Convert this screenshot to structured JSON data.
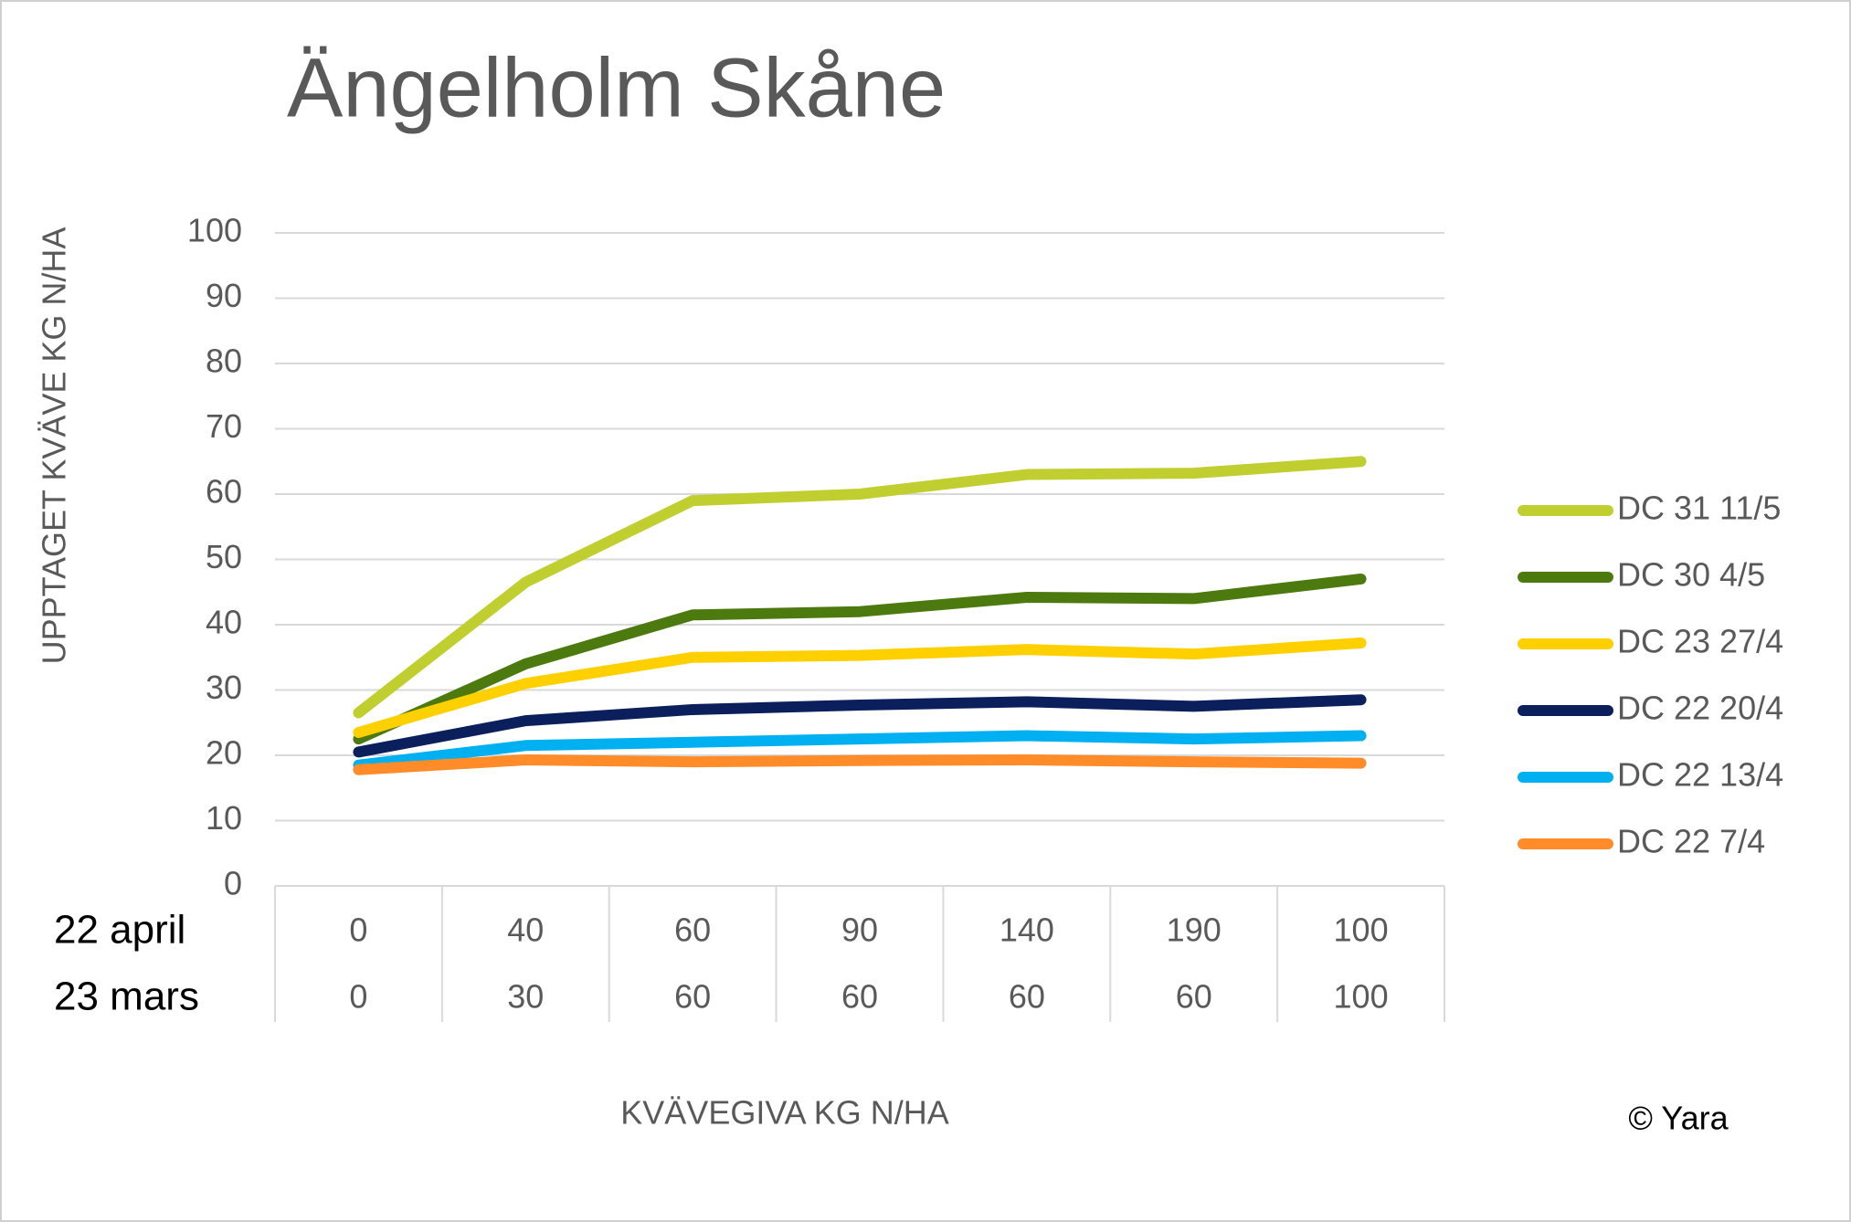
{
  "chart_data": {
    "type": "line",
    "title": "Ängelholm Skåne",
    "y_label": "UPPTAGET KVÄVE KG N/HA",
    "x_label": "KVÄVEGIVA KG N/HA",
    "note": "© Yara",
    "category_levels": [
      {
        "name": "22 april",
        "labels": [
          "0",
          "40",
          "60",
          "90",
          "140",
          "190",
          "100"
        ]
      },
      {
        "name": "23 mars",
        "labels": [
          "0",
          "30",
          "60",
          "60",
          "60",
          "60",
          "100"
        ]
      }
    ],
    "ylim": [
      0,
      100
    ],
    "yticks": [
      0,
      10,
      20,
      30,
      40,
      50,
      60,
      70,
      80,
      90,
      100
    ],
    "grid": true,
    "legend": "right",
    "series": [
      {
        "name": "DC 31 11/5",
        "color": "#c0cf2f",
        "values": [
          26.5,
          46.5,
          59,
          60,
          63,
          63.2,
          65
        ]
      },
      {
        "name": "DC 30 4/5",
        "color": "#4d7a0f",
        "values": [
          22.5,
          34,
          41.5,
          42,
          44.2,
          44,
          47
        ]
      },
      {
        "name": "DC 23 27/4",
        "color": "#ffd000",
        "values": [
          23.5,
          31,
          35,
          35.3,
          36.2,
          35.5,
          37.2
        ]
      },
      {
        "name": "DC 22 20/4",
        "color": "#0a1f5c",
        "values": [
          20.5,
          25.3,
          27,
          27.7,
          28.2,
          27.5,
          28.5
        ]
      },
      {
        "name": "DC 22 13/4",
        "color": "#00b0f0",
        "values": [
          18.5,
          21.5,
          22,
          22.5,
          23,
          22.5,
          23
        ]
      },
      {
        "name": "DC 22 7/4",
        "color": "#ff8c28",
        "values": [
          17.8,
          19.3,
          19,
          19.2,
          19.3,
          19,
          18.8
        ]
      }
    ]
  }
}
